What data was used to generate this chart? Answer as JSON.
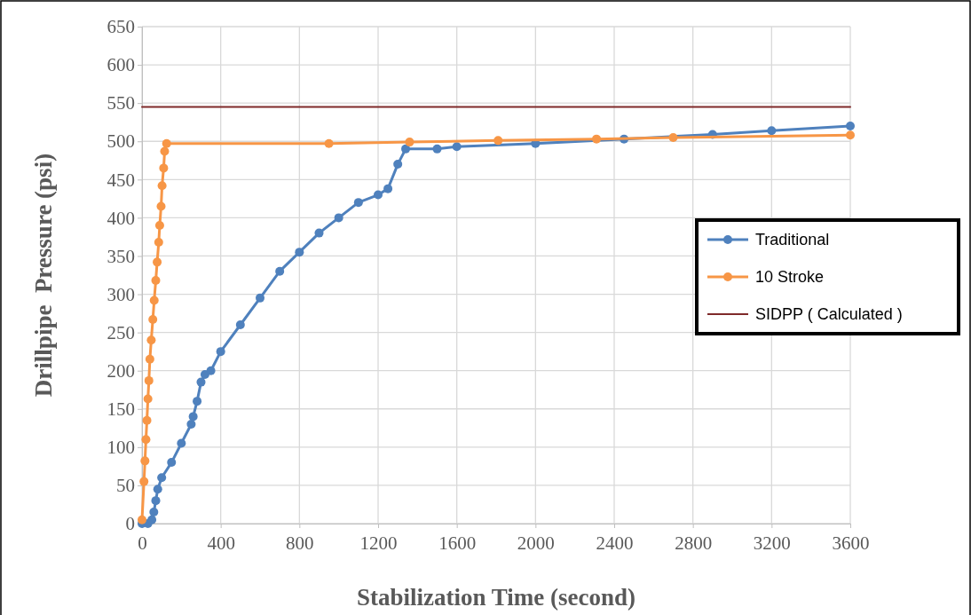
{
  "chart_data": {
    "type": "line",
    "xlabel": "Stabilization Time (second)",
    "ylabel": "Drillpipe  Pressure (psi)",
    "xlim": [
      0,
      3600
    ],
    "xticks": [
      0,
      400,
      800,
      1200,
      1600,
      2000,
      2400,
      2800,
      3200,
      3600
    ],
    "ylim": [
      0,
      650
    ],
    "yticks": [
      0,
      50,
      100,
      150,
      200,
      250,
      300,
      350,
      400,
      450,
      500,
      550,
      600,
      650
    ],
    "grid": true,
    "legend": "right",
    "marker": "circle",
    "line_style": "solid",
    "series": [
      {
        "name": "Traditional",
        "color": "#4f81bd",
        "x": [
          0,
          30,
          50,
          60,
          70,
          80,
          100,
          150,
          200,
          250,
          260,
          280,
          300,
          320,
          350,
          400,
          500,
          600,
          700,
          800,
          900,
          1000,
          1100,
          1200,
          1250,
          1300,
          1340,
          1500,
          1600,
          2000,
          2450,
          2900,
          3200,
          3600
        ],
        "values": [
          0,
          0,
          5,
          15,
          30,
          45,
          60,
          80,
          105,
          130,
          140,
          160,
          185,
          195,
          200,
          225,
          260,
          295,
          330,
          355,
          380,
          400,
          420,
          430,
          438,
          470,
          490,
          490,
          493,
          497,
          503,
          509,
          514,
          520
        ]
      },
      {
        "name": "10 Stroke",
        "color": "#f79646",
        "x": [
          0,
          10,
          15,
          20,
          25,
          30,
          35,
          40,
          47,
          55,
          62,
          70,
          77,
          85,
          90,
          97,
          102,
          110,
          115,
          125,
          950,
          1360,
          1810,
          2310,
          2700,
          3600
        ],
        "values": [
          5,
          55,
          82,
          110,
          135,
          163,
          187,
          215,
          240,
          267,
          292,
          318,
          342,
          368,
          390,
          415,
          442,
          465,
          487,
          497,
          497,
          499,
          501,
          503,
          505,
          508
        ]
      },
      {
        "name": "SIDPP ( Calculated )",
        "color": "#7f2a2a",
        "marker": "none",
        "x": [
          0,
          3600
        ],
        "values": [
          545,
          545
        ]
      }
    ]
  }
}
